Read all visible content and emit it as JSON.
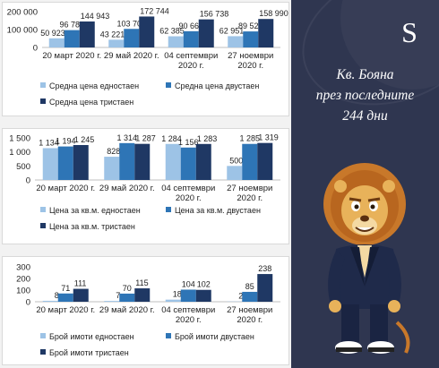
{
  "right_panel": {
    "logo_letter": "S",
    "heading_lines": [
      "Кв. Бояна",
      "през последните",
      "244 дни"
    ],
    "colors": {
      "background": "#2f3650"
    }
  },
  "series_colors": [
    "#9dc3e6",
    "#2e75b6",
    "#1f3864"
  ],
  "chart_data": [
    {
      "type": "bar",
      "categories": [
        [
          "20 март 2020 г."
        ],
        [
          "29 май 2020 г."
        ],
        [
          "04 септември",
          "2020 г."
        ],
        [
          "27 ноември",
          "2020 г."
        ]
      ],
      "y_ticks": [
        "200 000",
        "100 000",
        "0"
      ],
      "ylim": [
        0,
        200000
      ],
      "value_labels": [
        [
          "50 923",
          "43 221",
          "62 385",
          "62 951"
        ],
        [
          "96 786",
          "103 705",
          "90 667",
          "89 523"
        ],
        [
          "144 943",
          "172 744",
          "156 738",
          "158 990"
        ]
      ],
      "series": [
        {
          "name": "Средна цена едностаен",
          "values": [
            50923,
            43221,
            62385,
            62951
          ]
        },
        {
          "name": "Средна цена двустаен",
          "values": [
            96786,
            103705,
            90667,
            89523
          ]
        },
        {
          "name": "Средна цена тристаен",
          "values": [
            144943,
            172744,
            156738,
            158990
          ]
        }
      ]
    },
    {
      "type": "bar",
      "categories": [
        [
          "20 март 2020 г."
        ],
        [
          "29 май 2020 г."
        ],
        [
          "04 септември",
          "2020 г."
        ],
        [
          "27 ноември",
          "2020 г."
        ]
      ],
      "y_ticks": [
        "1 500",
        "1 000",
        "500",
        "0"
      ],
      "ylim": [
        0,
        1500
      ],
      "value_labels": [
        [
          "1 134",
          "828",
          "1 284",
          "500"
        ],
        [
          "1 194",
          "1 314",
          "1 156",
          "1 285"
        ],
        [
          "1 245",
          "1 287",
          "1 283",
          "1 319"
        ]
      ],
      "series": [
        {
          "name": "Цена за кв.м. едностаен",
          "values": [
            1134,
            828,
            1284,
            500
          ]
        },
        {
          "name": "Цена за кв.м. двустаен",
          "values": [
            1194,
            1314,
            1156,
            1285
          ]
        },
        {
          "name": "Цена за кв.м. тристаен",
          "values": [
            1245,
            1287,
            1283,
            1319
          ]
        }
      ]
    },
    {
      "type": "bar",
      "categories": [
        [
          "20 март 2020 г."
        ],
        [
          "29 май 2020 г."
        ],
        [
          "04 септември",
          "2020 г."
        ],
        [
          "27 ноември",
          "2020 г."
        ]
      ],
      "y_ticks": [
        "300",
        "200",
        "100",
        "0"
      ],
      "ylim": [
        0,
        300
      ],
      "value_labels": [
        [
          "8",
          "7",
          "18",
          "2"
        ],
        [
          "71",
          "70",
          "104",
          "85"
        ],
        [
          "111",
          "115",
          "102",
          "238"
        ]
      ],
      "series": [
        {
          "name": "Брой имоти едностаен",
          "values": [
            8,
            7,
            18,
            2
          ]
        },
        {
          "name": "Брой имоти двустаен",
          "values": [
            71,
            70,
            104,
            85
          ]
        },
        {
          "name": "Брой имоти тристаен",
          "values": [
            111,
            115,
            102,
            238
          ]
        }
      ]
    }
  ]
}
